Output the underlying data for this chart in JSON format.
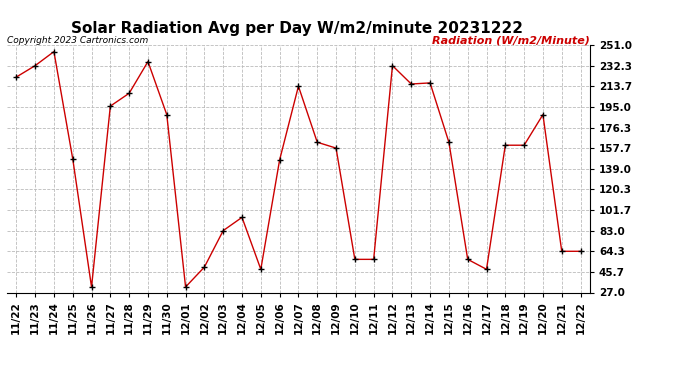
{
  "title": "Solar Radiation Avg per Day W/m2/minute 20231222",
  "copyright": "Copyright 2023 Cartronics.com",
  "ylabel": "Radiation (W/m2/Minute)",
  "labels": [
    "11/22",
    "11/23",
    "11/24",
    "11/25",
    "11/26",
    "11/27",
    "11/28",
    "11/29",
    "11/30",
    "12/01",
    "12/02",
    "12/03",
    "12/04",
    "12/05",
    "12/06",
    "12/07",
    "12/08",
    "12/09",
    "12/10",
    "12/11",
    "12/12",
    "12/13",
    "12/14",
    "12/15",
    "12/16",
    "12/17",
    "12/18",
    "12/19",
    "12/20",
    "12/21",
    "12/22"
  ],
  "values": [
    222.0,
    232.3,
    245.0,
    148.0,
    32.0,
    195.7,
    207.3,
    236.0,
    188.0,
    32.0,
    50.0,
    83.0,
    95.0,
    48.0,
    147.0,
    213.7,
    163.0,
    157.7,
    57.0,
    57.0,
    232.3,
    215.7,
    216.7,
    163.0,
    57.0,
    48.0,
    160.3,
    160.3,
    188.0,
    64.3,
    64.3
  ],
  "yticks": [
    27.0,
    45.7,
    64.3,
    83.0,
    101.7,
    120.3,
    139.0,
    157.7,
    176.3,
    195.0,
    213.7,
    232.3,
    251.0
  ],
  "ylim": [
    27.0,
    251.0
  ],
  "line_color": "#cc0000",
  "marker_color": "#000000",
  "bg_color": "#ffffff",
  "grid_color": "#bbbbbb",
  "title_fontsize": 11,
  "axis_label_fontsize": 8,
  "tick_fontsize": 7.5,
  "ylabel_color": "#cc0000",
  "copyright_color": "#000000"
}
